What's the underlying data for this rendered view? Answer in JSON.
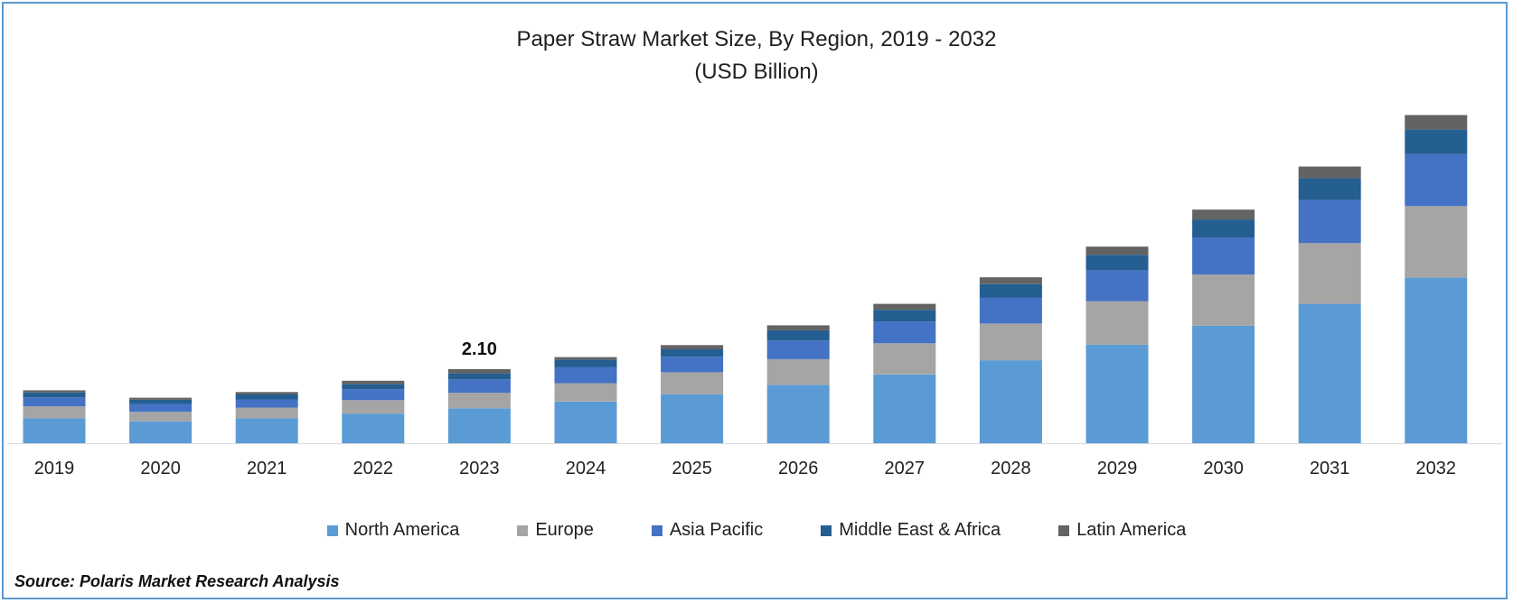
{
  "chart_data": {
    "type": "bar",
    "stacked": true,
    "title": "Paper Straw Market Size, By Region, 2019 - 2032",
    "subtitle": "(USD Billion)",
    "categories": [
      "2019",
      "2020",
      "2021",
      "2022",
      "2023",
      "2024",
      "2025",
      "2026",
      "2027",
      "2028",
      "2029",
      "2030",
      "2031",
      "2032"
    ],
    "series": [
      {
        "name": "North America",
        "color": "#5b9bd5",
        "values": [
          0.71,
          0.62,
          0.71,
          0.84,
          0.99,
          1.18,
          1.39,
          1.65,
          1.95,
          2.35,
          2.79,
          3.33,
          3.95,
          4.69
        ]
      },
      {
        "name": "Europe",
        "color": "#a5a5a5",
        "values": [
          0.34,
          0.27,
          0.3,
          0.38,
          0.44,
          0.52,
          0.62,
          0.73,
          0.88,
          1.04,
          1.23,
          1.45,
          1.72,
          2.03
        ]
      },
      {
        "name": "Asia Pacific",
        "color": "#4472c4",
        "values": [
          0.25,
          0.22,
          0.23,
          0.31,
          0.38,
          0.46,
          0.44,
          0.53,
          0.62,
          0.74,
          0.88,
          1.04,
          1.22,
          1.47
        ]
      },
      {
        "name": "Middle East & Africa",
        "color": "#255e91",
        "values": [
          0.14,
          0.12,
          0.14,
          0.15,
          0.17,
          0.21,
          0.21,
          0.29,
          0.33,
          0.38,
          0.44,
          0.52,
          0.62,
          0.7
        ]
      },
      {
        "name": "Latin America",
        "color": "#636363",
        "values": [
          0.06,
          0.06,
          0.07,
          0.09,
          0.12,
          0.07,
          0.12,
          0.14,
          0.17,
          0.19,
          0.23,
          0.28,
          0.33,
          0.41
        ]
      }
    ],
    "data_labels": [
      {
        "category": "2023",
        "text": "2.10"
      }
    ],
    "ylim": [
      0,
      10
    ],
    "legend": "bottom",
    "grid": false
  },
  "source": "Source: Polaris Market Research Analysis"
}
